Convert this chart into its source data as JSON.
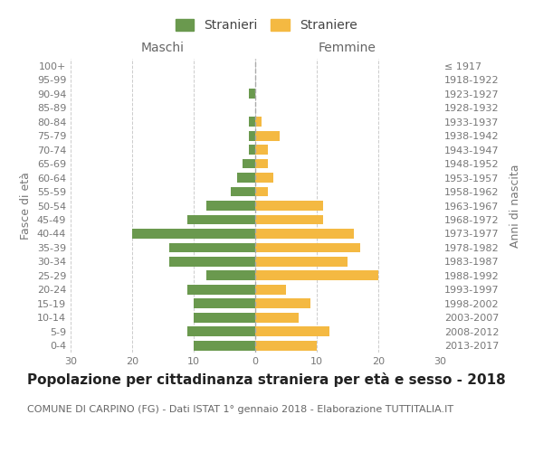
{
  "age_groups": [
    "100+",
    "95-99",
    "90-94",
    "85-89",
    "80-84",
    "75-79",
    "70-74",
    "65-69",
    "60-64",
    "55-59",
    "50-54",
    "45-49",
    "40-44",
    "35-39",
    "30-34",
    "25-29",
    "20-24",
    "15-19",
    "10-14",
    "5-9",
    "0-4"
  ],
  "birth_years": [
    "≤ 1917",
    "1918-1922",
    "1923-1927",
    "1928-1932",
    "1933-1937",
    "1938-1942",
    "1943-1947",
    "1948-1952",
    "1953-1957",
    "1958-1962",
    "1963-1967",
    "1968-1972",
    "1973-1977",
    "1978-1982",
    "1983-1987",
    "1988-1992",
    "1993-1997",
    "1998-2002",
    "2003-2007",
    "2008-2012",
    "2013-2017"
  ],
  "maschi": [
    0,
    0,
    1,
    0,
    1,
    1,
    1,
    2,
    3,
    4,
    8,
    11,
    20,
    14,
    14,
    8,
    11,
    10,
    10,
    11,
    10
  ],
  "femmine": [
    0,
    0,
    0,
    0,
    1,
    4,
    2,
    2,
    3,
    2,
    11,
    11,
    16,
    17,
    15,
    20,
    5,
    9,
    7,
    12,
    10
  ],
  "maschi_color": "#6a994e",
  "femmine_color": "#f4b942",
  "background_color": "#ffffff",
  "grid_color": "#cccccc",
  "title": "Popolazione per cittadinanza straniera per età e sesso - 2018",
  "subtitle": "COMUNE DI CARPINO (FG) - Dati ISTAT 1° gennaio 2018 - Elaborazione TUTTITALIA.IT",
  "xlabel_left": "Maschi",
  "xlabel_right": "Femmine",
  "ylabel_left": "Fasce di età",
  "ylabel_right": "Anni di nascita",
  "legend_maschi": "Stranieri",
  "legend_femmine": "Straniere",
  "xlim": 30,
  "title_fontsize": 11,
  "subtitle_fontsize": 8,
  "label_fontsize": 9,
  "tick_fontsize": 8
}
